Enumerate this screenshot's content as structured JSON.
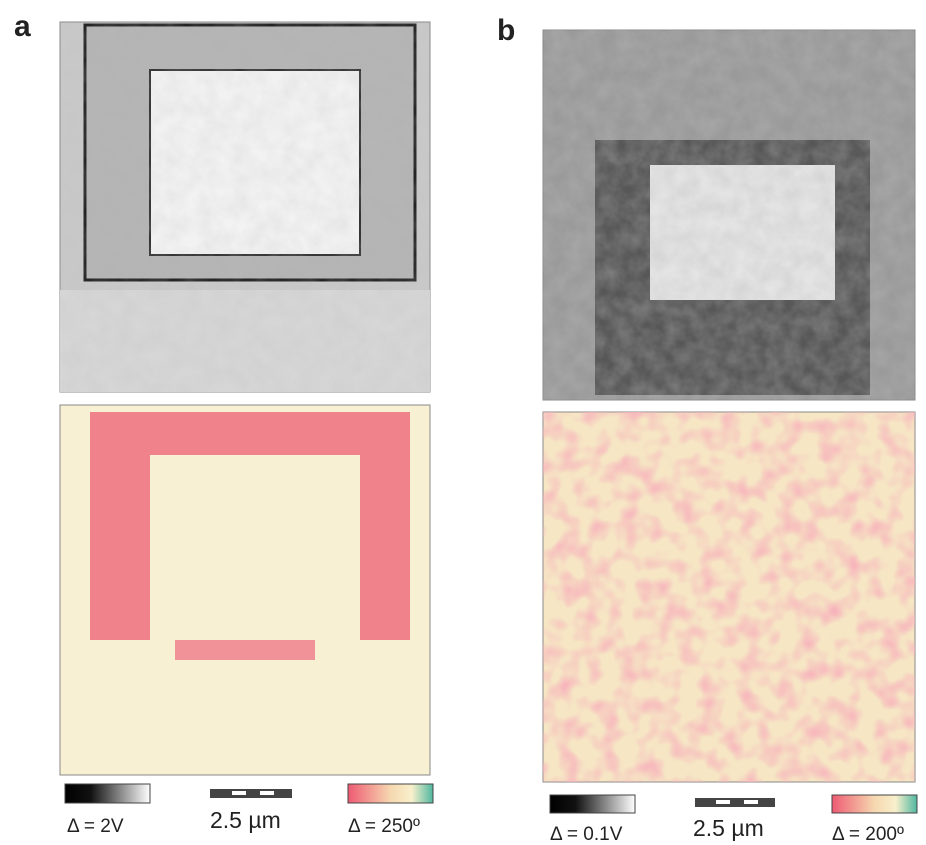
{
  "panels": [
    {
      "label": "a",
      "colorbar_left": "Δ = 2V",
      "scale_bar": "2.5 µm",
      "colorbar_right": "Δ = 250º"
    },
    {
      "label": "b",
      "colorbar_left": "Δ = 0.1V",
      "scale_bar": "2.5 µm",
      "colorbar_right": "Δ = 200º"
    }
  ]
}
